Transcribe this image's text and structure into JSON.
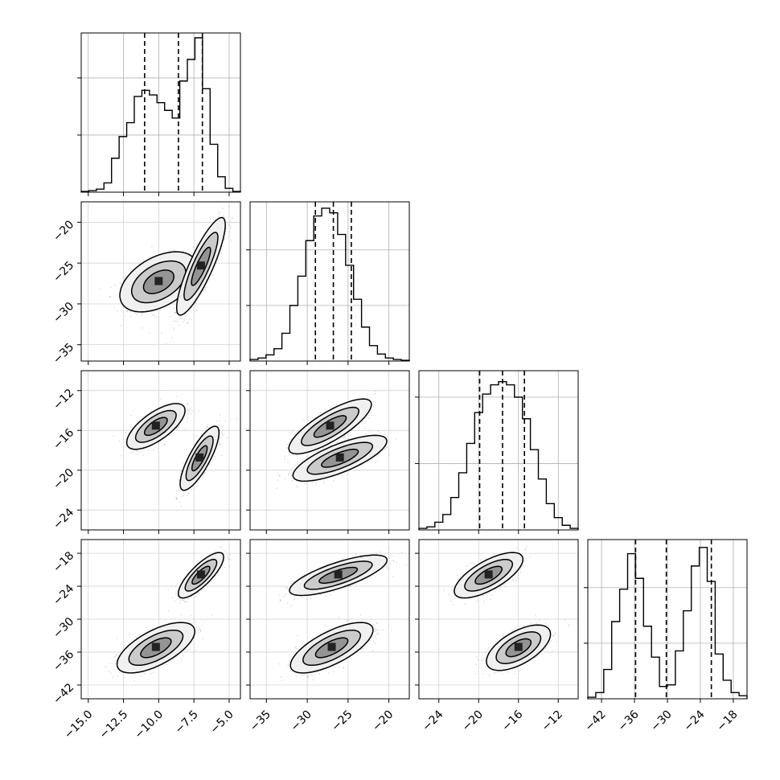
{
  "chart_data": {
    "type": "corner",
    "grid": true,
    "parameters": [
      {
        "ticks": [
          -15.0,
          -12.5,
          -10.0,
          -7.5,
          -5.0
        ],
        "tick_labels": [
          "−15.0",
          "−12.5",
          "−10.0",
          "−7.5",
          "−5.0"
        ],
        "range": [
          -15.5,
          -4.2
        ],
        "quantiles": [
          -11.0,
          -8.6,
          -6.9
        ],
        "histogram": [
          0.005,
          0.01,
          0.02,
          0.06,
          0.22,
          0.36,
          0.45,
          0.62,
          0.66,
          0.63,
          0.58,
          0.53,
          0.48,
          0.72,
          0.86,
          1.0,
          0.67,
          0.31,
          0.1,
          0.025,
          0.005
        ],
        "hist_yticks": [
          0.37,
          0.74,
          1.1
        ],
        "modes": [
          {
            "center": -10.0,
            "sd": 1.3
          },
          {
            "center": -7.0,
            "sd": 0.6
          }
        ]
      },
      {
        "ticks": [
          -35,
          -30,
          -25,
          -20
        ],
        "tick_labels": [
          "−35",
          "−30",
          "−25",
          "−20"
        ],
        "range": [
          -37,
          -17.5
        ],
        "quantiles": [
          -29.0,
          -26.8,
          -24.6
        ],
        "histogram": [
          0.01,
          0.02,
          0.04,
          0.08,
          0.18,
          0.36,
          0.55,
          0.78,
          0.94,
          0.99,
          0.96,
          0.82,
          0.62,
          0.4,
          0.22,
          0.1,
          0.045,
          0.02,
          0.01,
          0.005
        ],
        "hist_yticks": [
          0.36,
          0.72,
          1.1
        ],
        "modes": [
          {
            "center": -27.2,
            "sd": 2.5
          },
          {
            "center": -26.0,
            "sd": 2.2
          }
        ]
      },
      {
        "ticks": [
          -24,
          -20,
          -16,
          -12
        ],
        "tick_labels": [
          "−24",
          "−20",
          "−16",
          "−12"
        ],
        "range": [
          -26,
          -10
        ],
        "quantiles": [
          -19.9,
          -17.6,
          -15.4
        ],
        "histogram": [
          0.01,
          0.02,
          0.05,
          0.1,
          0.21,
          0.37,
          0.56,
          0.76,
          0.88,
          0.94,
          0.96,
          0.94,
          0.86,
          0.72,
          0.52,
          0.33,
          0.17,
          0.08,
          0.03,
          0.01
        ],
        "hist_yticks": [
          0.43,
          0.86
        ],
        "modes": [
          {
            "center": -16.5,
            "sd": 1.5
          },
          {
            "center": -18.8,
            "sd": 1.5
          }
        ]
      },
      {
        "ticks": [
          -42,
          -36,
          -30,
          -24,
          -18
        ],
        "tick_labels": [
          "−42",
          "−36",
          "−30",
          "−24",
          "−18"
        ],
        "range": [
          -44.5,
          -15.5
        ],
        "quantiles": [
          -35.8,
          -30.2,
          -22.0
        ],
        "histogram": [
          0.01,
          0.04,
          0.19,
          0.5,
          0.71,
          0.94,
          0.78,
          0.47,
          0.27,
          0.08,
          0.09,
          0.31,
          0.57,
          0.86,
          0.98,
          0.76,
          0.29,
          0.12,
          0.04,
          0.02
        ],
        "hist_yticks": [
          0.36,
          0.72
        ],
        "modes": [
          {
            "center": -35.0,
            "sd": 2.0
          },
          {
            "center": -22.0,
            "sd": 2.0
          }
        ]
      }
    ],
    "pair_modes": {
      "1-0": [
        {
          "cx": -10.0,
          "cy": -27.3,
          "sx": 1.2,
          "sy": 1.6,
          "r": 0.45
        },
        {
          "cx": -7.0,
          "cy": -25.4,
          "sx": 0.75,
          "sy": 2.6,
          "r": 0.85
        }
      ],
      "2-0": [
        {
          "cx": -10.2,
          "cy": -15.6,
          "sx": 0.9,
          "sy": 1.0,
          "r": 0.7
        },
        {
          "cx": -7.1,
          "cy": -18.8,
          "sx": 0.6,
          "sy": 1.4,
          "r": 0.8
        }
      ],
      "2-1": [
        {
          "cx": -27.2,
          "cy": -15.6,
          "sx": 2.2,
          "sy": 1.2,
          "r": 0.8
        },
        {
          "cx": -26.0,
          "cy": -18.8,
          "sx": 2.5,
          "sy": 1.0,
          "r": 0.75
        }
      ],
      "3-0": [
        {
          "cx": -10.2,
          "cy": -35.2,
          "sx": 1.2,
          "sy": 2.0,
          "r": 0.65
        },
        {
          "cx": -7.0,
          "cy": -22.0,
          "sx": 0.7,
          "sy": 1.8,
          "r": 0.8
        }
      ],
      "3-1": [
        {
          "cx": -27.0,
          "cy": -35.2,
          "sx": 2.2,
          "sy": 2.0,
          "r": 0.7
        },
        {
          "cx": -26.2,
          "cy": -22.0,
          "sx": 2.6,
          "sy": 1.6,
          "r": 0.75
        }
      ],
      "3-2": [
        {
          "cx": -19.0,
          "cy": -22.0,
          "sx": 1.5,
          "sy": 1.8,
          "r": 0.7
        },
        {
          "cx": -16.0,
          "cy": -35.2,
          "sx": 1.4,
          "sy": 1.8,
          "r": 0.6
        }
      ]
    },
    "contour_levels": [
      0.5,
      1.0,
      1.5
    ]
  }
}
